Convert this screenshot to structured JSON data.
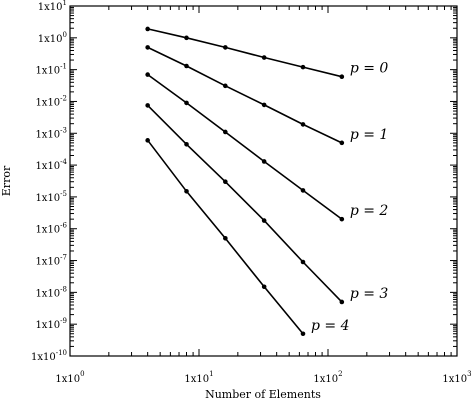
{
  "chart_data": {
    "type": "line",
    "x_scale": "log",
    "y_scale": "log",
    "xlim": [
      1,
      1000
    ],
    "ylim": [
      1e-10,
      10
    ],
    "grid": false,
    "xlabel": "Number of Elements",
    "ylabel": "Error",
    "x_ticks": [
      {
        "base": "1x10",
        "exp": "0"
      },
      {
        "base": "1x10",
        "exp": "1"
      },
      {
        "base": "1x10",
        "exp": "2"
      },
      {
        "base": "1x10",
        "exp": "3"
      }
    ],
    "y_ticks": [
      {
        "base": "1x10",
        "exp": "1"
      },
      {
        "base": "1x10",
        "exp": "0"
      },
      {
        "base": "1x10",
        "exp": "-1"
      },
      {
        "base": "1x10",
        "exp": "-2"
      },
      {
        "base": "1x10",
        "exp": "-3"
      },
      {
        "base": "1x10",
        "exp": "-4"
      },
      {
        "base": "1x10",
        "exp": "-5"
      },
      {
        "base": "1x10",
        "exp": "-6"
      },
      {
        "base": "1x10",
        "exp": "-7"
      },
      {
        "base": "1x10",
        "exp": "-8"
      },
      {
        "base": "1x10",
        "exp": "-9"
      },
      {
        "base": "1x10",
        "exp": "-10"
      }
    ],
    "series": [
      {
        "name": "p  = 0",
        "x": [
          4,
          8,
          16,
          32,
          64,
          128
        ],
        "y": [
          1.9,
          1.0,
          0.5,
          0.24,
          0.12,
          0.06
        ]
      },
      {
        "name": "p  = 1",
        "x": [
          4,
          8,
          16,
          32,
          64,
          128
        ],
        "y": [
          0.5,
          0.13,
          0.031,
          0.0078,
          0.0019,
          0.0005
        ]
      },
      {
        "name": "p  = 2",
        "x": [
          4,
          8,
          16,
          32,
          64,
          128
        ],
        "y": [
          0.07,
          0.009,
          0.0011,
          0.00013,
          1.6e-05,
          2e-06
        ]
      },
      {
        "name": "p  = 3",
        "x": [
          4,
          8,
          16,
          32,
          64,
          128
        ],
        "y": [
          0.0075,
          0.00045,
          3e-05,
          1.8e-06,
          9e-08,
          5e-09
        ]
      },
      {
        "name": "p  = 4",
        "x": [
          4,
          8,
          16,
          32,
          64
        ],
        "y": [
          0.0006,
          1.5e-05,
          5e-07,
          1.5e-08,
          5e-10
        ]
      }
    ]
  }
}
